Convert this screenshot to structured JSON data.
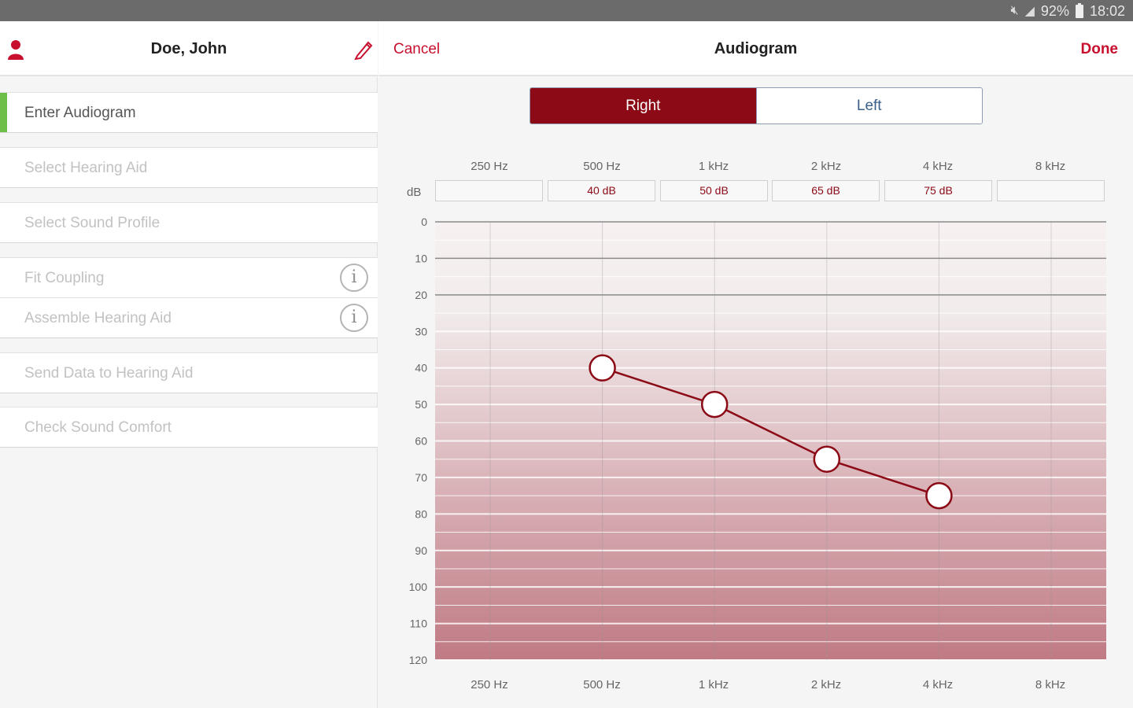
{
  "status_bar": {
    "mute_icon": "mute-icon",
    "signal_icon": "signal-icon",
    "battery_percent": "92%",
    "time": "18:02"
  },
  "sidebar": {
    "patient_name": "Doe, John",
    "steps": [
      {
        "label": "Enter Audiogram",
        "active": true
      },
      {
        "label": "Select Hearing Aid"
      },
      {
        "label": "Select Sound Profile"
      },
      {
        "label": "Fit Coupling",
        "has_info": true
      },
      {
        "label": "Assemble Hearing Aid",
        "has_info": true
      },
      {
        "label": "Send Data to Hearing Aid"
      },
      {
        "label": "Check Sound Comfort"
      }
    ],
    "info_glyph": "i"
  },
  "header": {
    "cancel_label": "Cancel",
    "title": "Audiogram",
    "done_label": "Done"
  },
  "ear_toggle": {
    "right_label": "Right",
    "left_label": "Left",
    "selected": "Right"
  },
  "db_label": "dB",
  "chart_data": {
    "type": "line",
    "x": [
      "250 Hz",
      "500 Hz",
      "1 kHz",
      "2 kHz",
      "4 kHz",
      "8 kHz"
    ],
    "field_values": [
      "",
      "40 dB",
      "50 dB",
      "65 dB",
      "75 dB",
      ""
    ],
    "series": [
      {
        "values": [
          null,
          40,
          50,
          65,
          75,
          null
        ]
      }
    ],
    "y_ticks": [
      "0",
      "10",
      "20",
      "30",
      "40",
      "50",
      "60",
      "70",
      "80",
      "90",
      "100",
      "110",
      "120"
    ],
    "ylim": [
      0,
      120
    ],
    "y_inverted": true,
    "line_color": "#8b0a15",
    "fill_color_top": "#f7f0f1",
    "fill_color_bottom": "#c07a84"
  },
  "colors": {
    "accent": "#c8102e",
    "selected_segment": "#8b0a15",
    "active_step_marker": "#6cc04a"
  }
}
